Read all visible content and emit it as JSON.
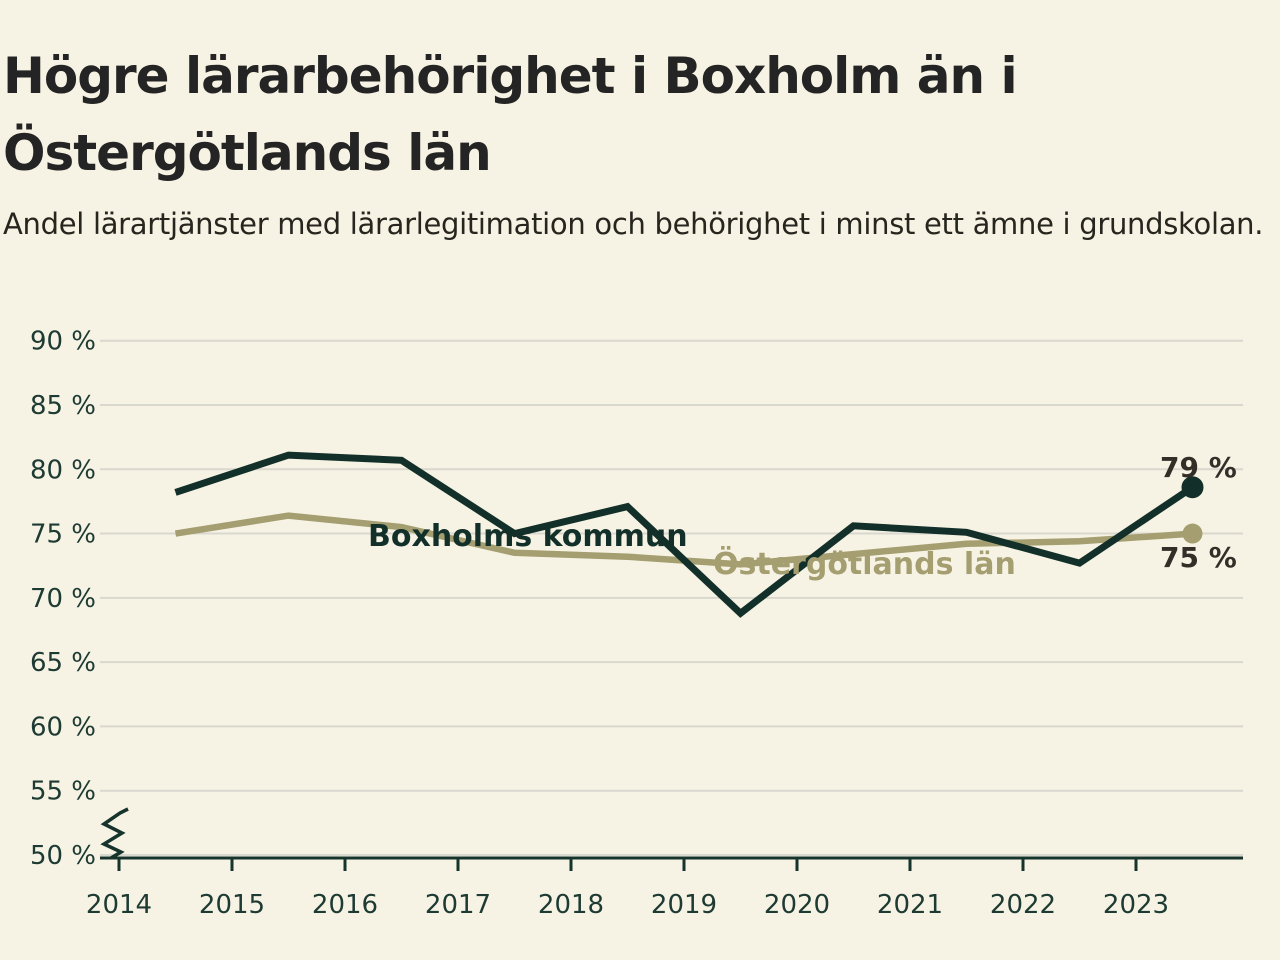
{
  "header": {
    "title": "Högre lärarbehörighet i Boxholm än i Östergötlands län",
    "subtitle": "Andel lärartjänster med lärarlegitimation och behörighet i minst ett ämne i grundskolan."
  },
  "colors": {
    "background": "#f7f3e4",
    "title_text": "#242424",
    "axis_line": "#16332c",
    "axis_label": "#1d3a33",
    "gridline": "#d9d8cf",
    "value_label": "#322f28",
    "series_boxholm": "#123029",
    "series_ostergotland": "#a49e70"
  },
  "chart_data": {
    "type": "line",
    "title": "Högre lärarbehörighet i Boxholm än i Östergötlands län",
    "subtitle": "Andel lärartjänster med lärarlegitimation och behörighet i minst ett ämne i grundskolan.",
    "grid": true,
    "legend_position": "inline-labels-on-lines",
    "ylim": [
      50,
      90
    ],
    "y_axis_break_below": 55,
    "y_unit": "%",
    "y_tick_values": [
      90,
      85,
      80,
      75,
      70,
      65,
      60,
      55,
      50
    ],
    "y_tick_labels": [
      "90 %",
      "85 %",
      "80 %",
      "75 %",
      "70 %",
      "65 %",
      "60 %",
      "55 %",
      "50 %"
    ],
    "x_tick_labels": [
      "2014",
      "2015",
      "2016",
      "2017",
      "2018",
      "2019",
      "2020",
      "2021",
      "2022",
      "2023"
    ],
    "x": [
      2014.5,
      2015.5,
      2016.5,
      2017.5,
      2018.5,
      2019.5,
      2020.5,
      2021.5,
      2022.5,
      2023.5
    ],
    "series": [
      {
        "name": "Boxholms kommun",
        "color": "#123029",
        "values": [
          78.2,
          81.1,
          80.7,
          75.0,
          77.1,
          68.8,
          75.6,
          75.1,
          72.7,
          78.6
        ],
        "end_label": "79 %"
      },
      {
        "name": "Östergötlands län",
        "color": "#a49e70",
        "values": [
          75.0,
          76.4,
          75.5,
          73.5,
          73.2,
          72.6,
          73.4,
          74.2,
          74.4,
          75.0
        ],
        "end_label": "75 %"
      }
    ]
  }
}
